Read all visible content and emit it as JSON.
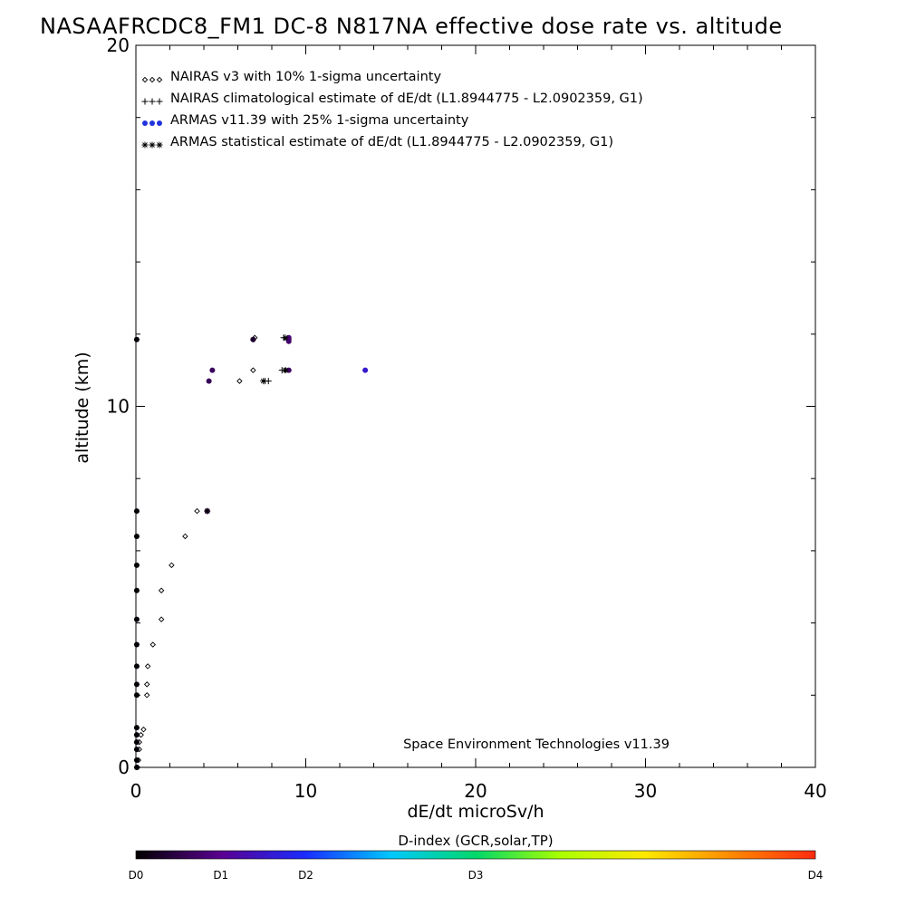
{
  "chart_data": {
    "type": "scatter",
    "title": "NASAAFRCDC8_FM1 DC-8   N817NA effective dose rate vs. altitude",
    "xlabel": "dE/dt microSv/h",
    "ylabel": "altitude (km)",
    "xlim": [
      0,
      40
    ],
    "ylim": [
      0,
      20
    ],
    "x_ticks": [
      "0",
      "10",
      "20",
      "30",
      "40"
    ],
    "y_ticks": [
      "0",
      "10",
      "20"
    ],
    "grid": false,
    "legend_position": "top-left",
    "credit": "Space Environment Technologies v11.39",
    "series": [
      {
        "name": "NAIRAS v3 with 10% 1-sigma uncertainty",
        "marker": "diamond",
        "color": "#000000",
        "points": [
          [
            0.1,
            0.0
          ],
          [
            0.15,
            0.2
          ],
          [
            0.2,
            0.5
          ],
          [
            0.2,
            0.7
          ],
          [
            0.3,
            0.9
          ],
          [
            0.45,
            1.05
          ],
          [
            0.65,
            2.0
          ],
          [
            0.65,
            2.3
          ],
          [
            0.7,
            2.8
          ],
          [
            1.0,
            3.4
          ],
          [
            1.5,
            4.1
          ],
          [
            1.5,
            4.9
          ],
          [
            2.1,
            5.6
          ],
          [
            2.9,
            6.4
          ],
          [
            3.6,
            7.1
          ],
          [
            6.1,
            10.7
          ],
          [
            6.9,
            11.0
          ],
          [
            6.9,
            11.85
          ],
          [
            7.0,
            11.9
          ],
          [
            8.8,
            11.0
          ],
          [
            9.0,
            11.85
          ]
        ]
      },
      {
        "name": "NAIRAS climatological estimate of dE/dt (L1.8944775 - L2.0902359, G1)",
        "marker": "plus",
        "color": "#000000",
        "points": [
          [
            7.6,
            10.7
          ],
          [
            7.8,
            10.7
          ],
          [
            8.6,
            11.0
          ],
          [
            8.8,
            11.0
          ],
          [
            8.7,
            11.9
          ],
          [
            8.9,
            11.85
          ]
        ]
      },
      {
        "name": "ARMAS v11.39 with 25% 1-sigma uncertainty",
        "marker": "dot",
        "color": "#2233dd",
        "points": [
          [
            0.05,
            0.0
          ],
          [
            0.05,
            0.2
          ],
          [
            0.05,
            0.5
          ],
          [
            0.05,
            0.7
          ],
          [
            0.05,
            0.9
          ],
          [
            0.05,
            1.1
          ],
          [
            0.05,
            2.0
          ],
          [
            0.05,
            2.3
          ],
          [
            0.05,
            2.8
          ],
          [
            0.05,
            3.4
          ],
          [
            0.05,
            4.1
          ],
          [
            0.05,
            4.9
          ],
          [
            0.05,
            5.6
          ],
          [
            0.05,
            6.4
          ],
          [
            0.05,
            7.1
          ],
          [
            0.05,
            11.85
          ],
          [
            4.2,
            7.1
          ],
          [
            4.3,
            10.7
          ],
          [
            4.5,
            11.0
          ],
          [
            6.9,
            11.85
          ],
          [
            9.0,
            11.0
          ],
          [
            9.0,
            11.8
          ],
          [
            9.0,
            11.9
          ],
          [
            13.5,
            11.0
          ]
        ],
        "d_index": [
          0.05,
          0.05,
          0.05,
          0.05,
          0.05,
          0.05,
          0.05,
          0.05,
          0.05,
          0.05,
          0.05,
          0.05,
          0.05,
          0.05,
          0.05,
          0.05,
          0.55,
          0.6,
          0.65,
          0.3,
          0.7,
          0.75,
          0.8,
          1.55
        ]
      },
      {
        "name": "ARMAS statistical estimate of dE/dt (L1.8944775 - L2.0902359, G1)",
        "marker": "asterisk",
        "color": "#000000",
        "points": [
          [
            4.2,
            7.1
          ],
          [
            7.5,
            10.7
          ],
          [
            8.8,
            11.0
          ],
          [
            8.8,
            11.9
          ]
        ]
      }
    ],
    "colorbar": {
      "title": "D-index (GCR,solar,TP)",
      "labels": [
        "D0",
        "D1",
        "D2",
        "D3",
        "D4"
      ],
      "label_positions": [
        0,
        1,
        2,
        4,
        8
      ],
      "range": [
        0,
        8
      ],
      "colors": [
        "#000000",
        "#5a0090",
        "#1a2cff",
        "#00c8ff",
        "#00d86a",
        "#aaff00",
        "#ffe800",
        "#ff8a00",
        "#ff2a10"
      ]
    }
  }
}
